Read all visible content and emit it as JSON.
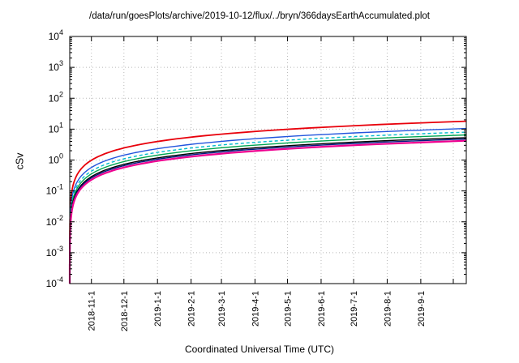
{
  "header": {
    "title": "/data/run/goesPlots/archive/2019-10-12/flux/../bryn/366daysEarthAccumulated.plot"
  },
  "chart_data": {
    "type": "line",
    "title": "/data/run/goesPlots/archive/2019-10-12/flux/../bryn/366daysEarthAccumulated.plot",
    "xlabel": "Coordinated Universal Time (UTC)",
    "ylabel": "cSv",
    "y_scale": "log10",
    "ylim": [
      0.0001,
      10000
    ],
    "y_tick_exponents": [
      -4,
      -3,
      -2,
      -1,
      0,
      1,
      2,
      3,
      4
    ],
    "x_span_days": 366,
    "grid": true,
    "legend": "none",
    "accumulation_model": "linear",
    "values_unit": "cSv",
    "x_ticks": [
      {
        "label": "2018-11-1",
        "day": 20
      },
      {
        "label": "2018-12-1",
        "day": 50
      },
      {
        "label": "2019-1-1",
        "day": 81
      },
      {
        "label": "2019-2-1",
        "day": 112
      },
      {
        "label": "2019-3-1",
        "day": 140
      },
      {
        "label": "2019-4-1",
        "day": 171
      },
      {
        "label": "2019-5-1",
        "day": 201
      },
      {
        "label": "2019-6-1",
        "day": 232
      },
      {
        "label": "2019-7-1",
        "day": 262
      },
      {
        "label": "2019-8-1",
        "day": 293
      },
      {
        "label": "2019-9-1",
        "day": 324
      },
      {
        "label": "",
        "day": 354
      }
    ],
    "series": [
      {
        "name": "line-red",
        "color": "#e8000b",
        "width": 1.8,
        "dash": "",
        "final": 18.0,
        "values_at_ticks": [
          0.98,
          2.46,
          3.98,
          5.51,
          6.89,
          8.41,
          9.89,
          11.41,
          12.89,
          14.41,
          15.93
        ]
      },
      {
        "name": "line-blue",
        "color": "#2255dd",
        "width": 1.4,
        "dash": "",
        "final": 10.5,
        "values_at_ticks": [
          0.57,
          1.43,
          2.32,
          3.21,
          4.02,
          4.91,
          5.77,
          6.66,
          7.52,
          8.41,
          9.3
        ]
      },
      {
        "name": "line-cyan",
        "color": "#00bbcc",
        "width": 1.4,
        "dash": "4,3",
        "final": 8.0,
        "values_at_ticks": [
          0.44,
          1.09,
          1.77,
          2.45,
          3.06,
          3.74,
          4.39,
          5.07,
          5.73,
          6.4,
          7.08
        ]
      },
      {
        "name": "line-green",
        "color": "#00a550",
        "width": 1.4,
        "dash": "",
        "final": 6.5,
        "values_at_ticks": [
          0.36,
          0.89,
          1.44,
          1.99,
          2.49,
          3.04,
          3.57,
          4.12,
          4.65,
          5.2,
          5.75
        ]
      },
      {
        "name": "line-black",
        "color": "#000000",
        "width": 1.4,
        "dash": "",
        "final": 5.3,
        "values_at_ticks": [
          0.29,
          0.72,
          1.17,
          1.62,
          2.03,
          2.48,
          2.91,
          3.36,
          3.79,
          4.24,
          4.69
        ]
      },
      {
        "name": "line-navy",
        "color": "#001a80",
        "width": 1.4,
        "dash": "",
        "final": 4.8,
        "values_at_ticks": [
          0.26,
          0.66,
          1.06,
          1.47,
          1.84,
          2.24,
          2.64,
          3.04,
          3.44,
          3.84,
          4.25
        ]
      },
      {
        "name": "line-magenta",
        "color": "#ee0090",
        "width": 2.2,
        "dash": "",
        "final": 4.2,
        "values_at_ticks": [
          0.23,
          0.57,
          0.93,
          1.29,
          1.61,
          1.96,
          2.31,
          2.66,
          3.01,
          3.36,
          3.72
        ]
      }
    ]
  }
}
